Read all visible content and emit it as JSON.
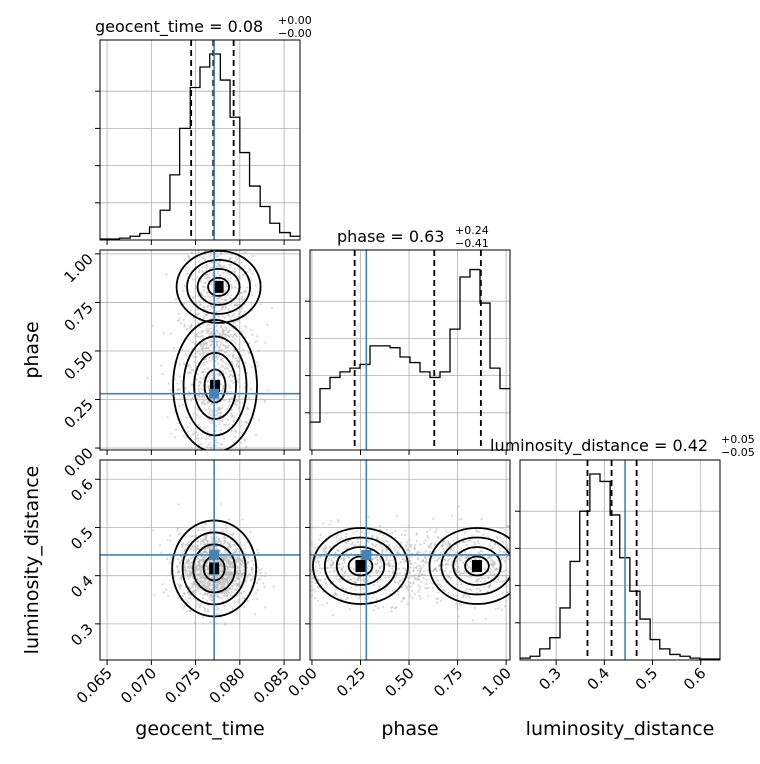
{
  "chart_data": {
    "type": "corner",
    "parameters": [
      "geocent_time",
      "phase",
      "luminosity_distance"
    ],
    "titles": {
      "geocent_time": {
        "text": "geocent_time = 0.08",
        "plus": "+0.00",
        "minus": "−0.00"
      },
      "phase": {
        "text": "phase = 0.63",
        "plus": "+0.24",
        "minus": "−0.41"
      },
      "luminosity_distance": {
        "text": "luminosity_distance = 0.42",
        "plus": "+0.05",
        "minus": "−0.05"
      }
    },
    "ranges": {
      "geocent_time": [
        0.0642,
        0.0868
      ],
      "phase": [
        -0.01,
        1.02
      ],
      "luminosity_distance": [
        0.225,
        0.64
      ]
    },
    "ticks": {
      "geocent_time": [
        "0.065",
        "0.070",
        "0.075",
        "0.080",
        "0.085"
      ],
      "phase": [
        "0.00",
        "0.25",
        "0.50",
        "0.75",
        "1.00"
      ],
      "luminosity_distance": [
        "0.3",
        "0.4",
        "0.5",
        "0.6"
      ]
    },
    "truths": {
      "geocent_time": 0.0771,
      "phase": 0.28,
      "luminosity_distance": 0.443
    },
    "quantiles": {
      "geocent_time": [
        0.0745,
        0.077,
        0.0793
      ],
      "phase": [
        0.22,
        0.63,
        0.87
      ],
      "luminosity_distance": [
        0.365,
        0.415,
        0.467
      ]
    },
    "histograms": {
      "geocent_time": {
        "edges": [
          0.0642,
          0.0653,
          0.0664,
          0.0676,
          0.0687,
          0.0698,
          0.071,
          0.0721,
          0.0732,
          0.0744,
          0.0755,
          0.0766,
          0.0778,
          0.0789,
          0.08,
          0.0811,
          0.0823,
          0.0834,
          0.0845,
          0.0857,
          0.0868
        ],
        "counts": [
          0.005,
          0.005,
          0.01,
          0.02,
          0.035,
          0.07,
          0.16,
          0.35,
          0.6,
          0.82,
          0.93,
          1.0,
          0.86,
          0.66,
          0.47,
          0.29,
          0.18,
          0.09,
          0.04,
          0.02
        ]
      },
      "phase": {
        "edges": [
          -0.01,
          0.0415,
          0.093,
          0.1445,
          0.196,
          0.2475,
          0.299,
          0.3505,
          0.402,
          0.4535,
          0.505,
          0.5565,
          0.608,
          0.6595,
          0.711,
          0.7625,
          0.814,
          0.8655,
          0.917,
          0.9685,
          1.02
        ],
        "counts": [
          0.15,
          0.33,
          0.39,
          0.42,
          0.44,
          0.46,
          0.56,
          0.56,
          0.55,
          0.5,
          0.47,
          0.42,
          0.39,
          0.42,
          0.65,
          0.93,
          0.97,
          0.79,
          0.44,
          0.33
        ]
      },
      "luminosity_distance": {
        "edges": [
          0.225,
          0.246,
          0.266,
          0.287,
          0.308,
          0.329,
          0.349,
          0.37,
          0.391,
          0.412,
          0.432,
          0.453,
          0.474,
          0.495,
          0.515,
          0.536,
          0.557,
          0.578,
          0.598,
          0.619,
          0.64
        ],
        "counts": [
          0.01,
          0.02,
          0.06,
          0.12,
          0.28,
          0.53,
          0.8,
          1.0,
          0.96,
          0.78,
          0.55,
          0.37,
          0.22,
          0.11,
          0.06,
          0.03,
          0.02,
          0.01,
          0.005,
          0.005
        ]
      }
    },
    "joint_2d": {
      "phase_vs_geocent_time": {
        "peaks": [
          [
            0.0776,
            0.83
          ],
          [
            0.0772,
            0.32
          ]
        ]
      },
      "luminosity_distance_vs_geocent_time": {
        "peaks": [
          [
            0.0771,
            0.415
          ]
        ]
      },
      "luminosity_distance_vs_phase": {
        "peaks": [
          [
            0.85,
            0.42
          ],
          [
            0.25,
            0.42
          ]
        ]
      }
    },
    "colors": {
      "truth": "#4682b4",
      "grid": "#b0b0b0",
      "line": "#000000"
    }
  }
}
